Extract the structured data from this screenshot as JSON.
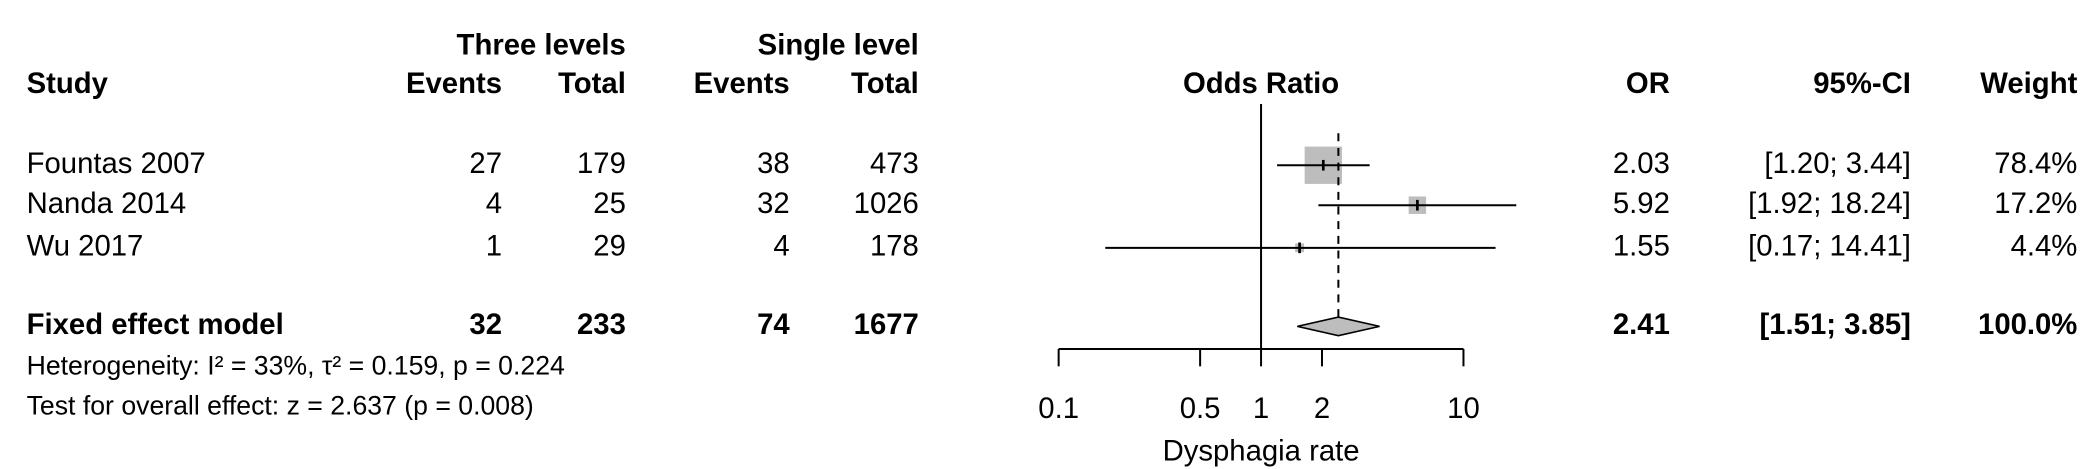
{
  "chart_data": {
    "type": "forest",
    "group_headers": [
      "Three levels",
      "Single level"
    ],
    "column_headers": {
      "study": "Study",
      "events": "Events",
      "total": "Total",
      "axis_title": "Odds Ratio",
      "or": "OR",
      "ci": "95%-CI",
      "weight": "Weight"
    },
    "log_x": true,
    "xlim": [
      0.1,
      10
    ],
    "xticks": [
      0.1,
      0.5,
      1,
      2,
      10
    ],
    "x_label": "Dysphagia rate",
    "box_color": "#bdbdbd",
    "studies": [
      {
        "name": "Fountas 2007",
        "events_a": 27,
        "total_a": 179,
        "events_b": 38,
        "total_b": 473,
        "or": 2.03,
        "ci_low": 1.2,
        "ci_high": 3.44,
        "ci_label": "[1.20; 3.44]",
        "weight": 78.4,
        "weight_label": "78.4%"
      },
      {
        "name": "Nanda 2014",
        "events_a": 4,
        "total_a": 25,
        "events_b": 32,
        "total_b": 1026,
        "or": 5.92,
        "ci_low": 1.92,
        "ci_high": 18.24,
        "ci_label": "[1.92; 18.24]",
        "weight": 17.2,
        "weight_label": "17.2%"
      },
      {
        "name": "Wu 2017",
        "events_a": 1,
        "total_a": 29,
        "events_b": 4,
        "total_b": 178,
        "or": 1.55,
        "ci_low": 0.17,
        "ci_high": 14.41,
        "ci_label": "[0.17; 14.41]",
        "weight": 4.4,
        "weight_label": "4.4%"
      }
    ],
    "pooled": {
      "name": "Fixed effect model",
      "events_a": 32,
      "total_a": 233,
      "events_b": 74,
      "total_b": 1677,
      "or": 2.41,
      "ci_low": 1.51,
      "ci_high": 3.85,
      "ci_label": "[1.51; 3.85]",
      "weight": 100.0,
      "weight_label": "100.0%"
    },
    "heterogeneity": "Heterogeneity: I² = 33%, τ² = 0.159, p = 0.224",
    "overall_effect": "Test for overall effect: z = 2.637 (p = 0.008)"
  }
}
